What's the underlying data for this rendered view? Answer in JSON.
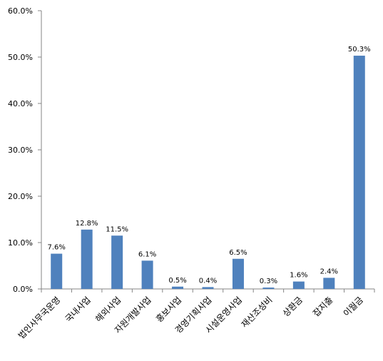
{
  "chart_data": {
    "type": "bar",
    "title": "",
    "xlabel": "",
    "ylabel": "",
    "ylim": [
      0,
      60
    ],
    "y_ticks": [
      "0.0%",
      "10.0%",
      "20.0%",
      "30.0%",
      "40.0%",
      "50.0%",
      "60.0%"
    ],
    "grid": false,
    "categories": [
      "법인사무국운영",
      "국내사업",
      "해외사업",
      "자원개발사업",
      "홍보사업",
      "경영기획사업",
      "시설운영사업",
      "재산조성비",
      "상환금",
      "잡지출",
      "이월금"
    ],
    "values": [
      7.6,
      12.8,
      11.5,
      6.1,
      0.5,
      0.4,
      6.5,
      0.3,
      1.6,
      2.4,
      50.3
    ],
    "data_labels": [
      "7.6%",
      "12.8%",
      "11.5%",
      "6.1%",
      "0.5%",
      "0.4%",
      "6.5%",
      "0.3%",
      "1.6%",
      "2.4%",
      "50.3%"
    ],
    "bar_color": "#4f81bd",
    "axis_color": "#868686"
  }
}
